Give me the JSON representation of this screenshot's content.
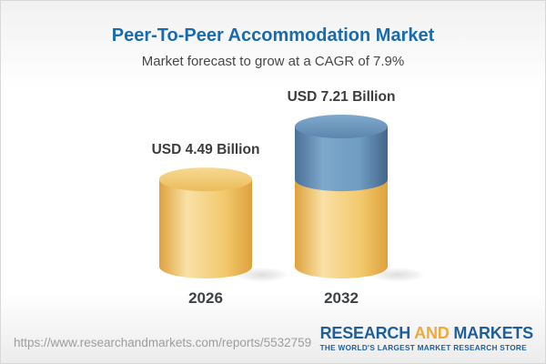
{
  "header": {
    "title": "Peer-To-Peer Accommodation Market",
    "subtitle": "Market forecast to grow at a CAGR of 7.9%"
  },
  "chart_data": {
    "type": "bar",
    "variant": "3d-cylinder-infographic",
    "title": "Peer-To-Peer Accommodation Market",
    "subtitle": "Market forecast to grow at a CAGR of 7.9%",
    "cagr": "7.9%",
    "unit": "USD Billion",
    "categories": [
      "2026",
      "2032"
    ],
    "values": [
      4.49,
      7.21
    ],
    "ylim": [
      0,
      7.21
    ],
    "grid": false,
    "legend": false,
    "bars": [
      {
        "year": "2026",
        "value": 4.49,
        "label": "USD 4.49 Billion",
        "segments": [
          {
            "name": "base-value",
            "from": 0,
            "to": 4.49,
            "palette": "base"
          }
        ]
      },
      {
        "year": "2032",
        "value": 7.21,
        "label": "USD 7.21 Billion",
        "segments": [
          {
            "name": "base-value",
            "from": 0,
            "to": 4.49,
            "palette": "base"
          },
          {
            "name": "forecast-growth",
            "from": 4.49,
            "to": 7.21,
            "palette": "growth"
          }
        ]
      }
    ]
  },
  "colors": {
    "title_blue": "#1a6bad",
    "subtitle_gray": "#474747",
    "value_label": "#3c3c3c",
    "year_label": "#3e4245",
    "url_gray": "#9d9d9d",
    "logo_blue": "#1d5f9e",
    "logo_gold": "#f0a93b",
    "palettes": {
      "base": {
        "body": [
          "#dfa23c",
          "#f9e0a6",
          "#f3c96e",
          "#dfa23c"
        ],
        "top": [
          "#f7d992",
          "#ebbc59"
        ]
      },
      "growth": {
        "body": [
          "#4a7197",
          "#7ea7cb",
          "#6f9cc2",
          "#44658a"
        ],
        "top": [
          "#7fa9cc",
          "#5c86ad"
        ]
      }
    }
  },
  "footer": {
    "url": "https://www.researchandmarkets.com/reports/5532759",
    "logo_research": "RESEARCH",
    "logo_and": "AND",
    "logo_markets": "MARKETS",
    "logo_tagline": "THE WORLD'S LARGEST MARKET RESEARCH STORE"
  }
}
